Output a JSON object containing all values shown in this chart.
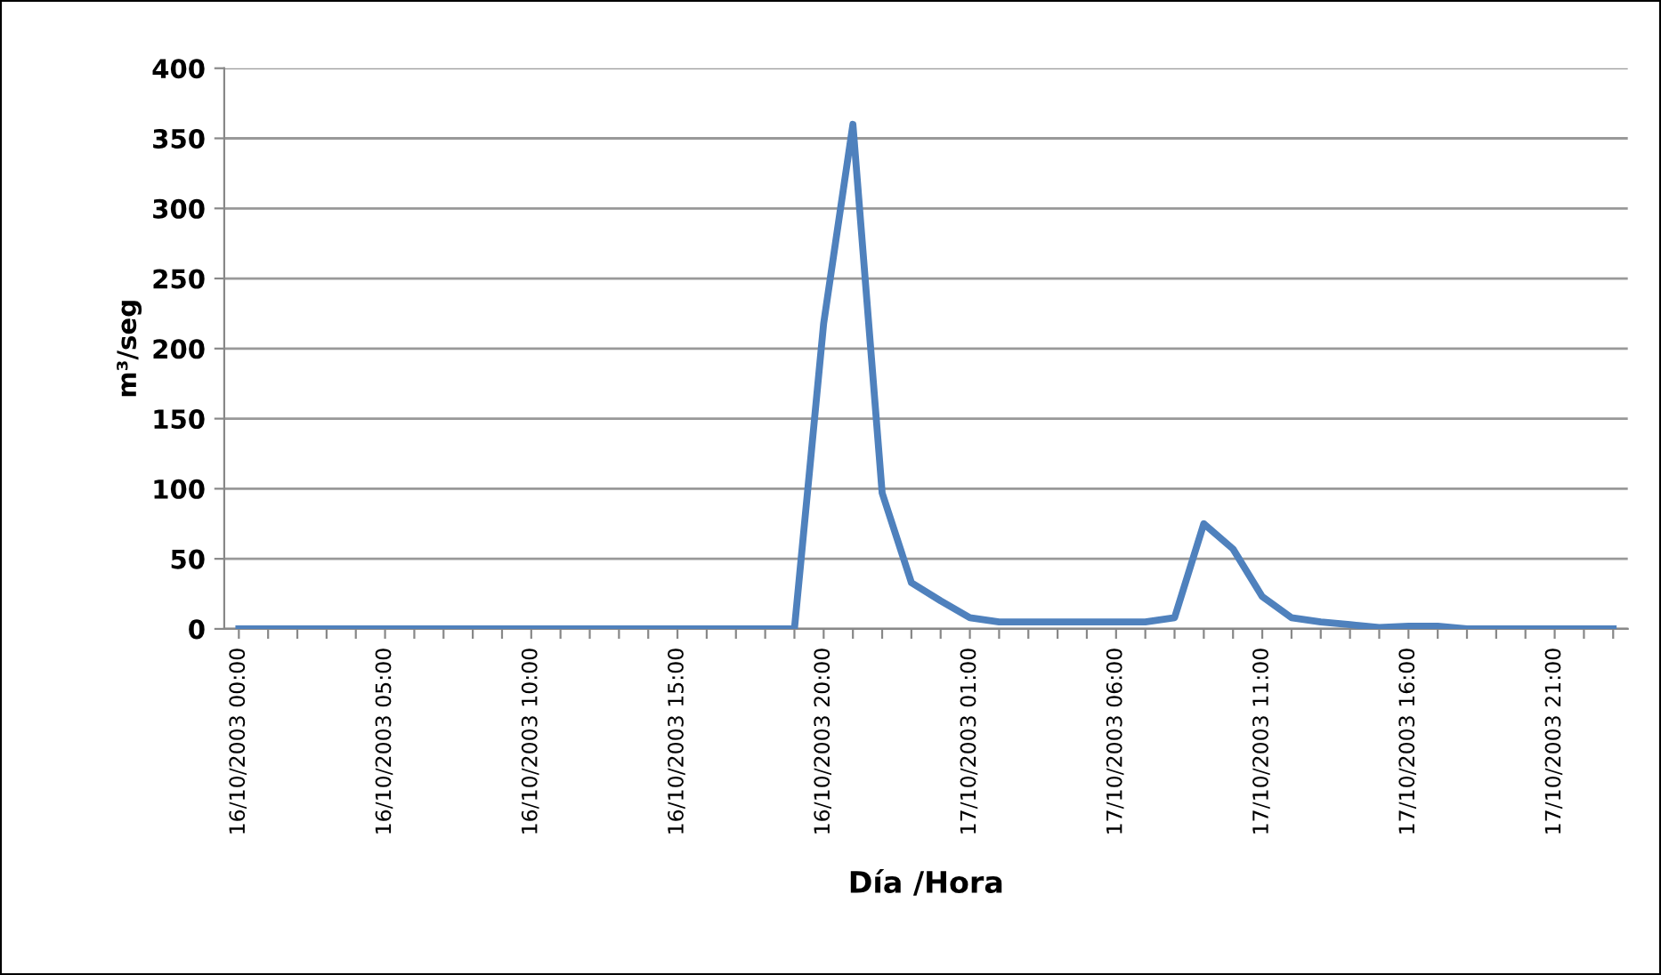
{
  "chart_data": {
    "type": "line",
    "xlabel": "Día /Hora",
    "ylabel": "m³/seg",
    "categories": [
      "16/10/2003 00:00",
      null,
      null,
      null,
      null,
      "16/10/2003 05:00",
      null,
      null,
      null,
      null,
      "16/10/2003 10:00",
      null,
      null,
      null,
      null,
      "16/10/2003 15:00",
      null,
      null,
      null,
      null,
      "16/10/2003 20:00",
      null,
      null,
      null,
      null,
      "17/10/2003 01:00",
      null,
      null,
      null,
      null,
      "17/10/2003 06:00",
      null,
      null,
      null,
      null,
      "17/10/2003 11:00",
      null,
      null,
      null,
      null,
      "17/10/2003 16:00",
      null,
      null,
      null,
      null,
      "17/10/2003 21:00",
      null,
      null
    ],
    "series": [
      {
        "color": "#4f81bd",
        "values": [
          0,
          0,
          0,
          0,
          0,
          0,
          0,
          0,
          0,
          0,
          0,
          0,
          0,
          0,
          0,
          0,
          0,
          0,
          0,
          0,
          218,
          360,
          97,
          33,
          20,
          8,
          5,
          5,
          5,
          5,
          5,
          5,
          8,
          75,
          57,
          23,
          8,
          5,
          3,
          1,
          2,
          2,
          0,
          0,
          0,
          0,
          0,
          0
        ]
      }
    ],
    "ylim": [
      0,
      400
    ],
    "yticks": [
      0,
      50,
      100,
      150,
      200,
      250,
      300,
      350,
      400
    ],
    "grid": "y",
    "marker": "none",
    "line_style": "solid"
  }
}
